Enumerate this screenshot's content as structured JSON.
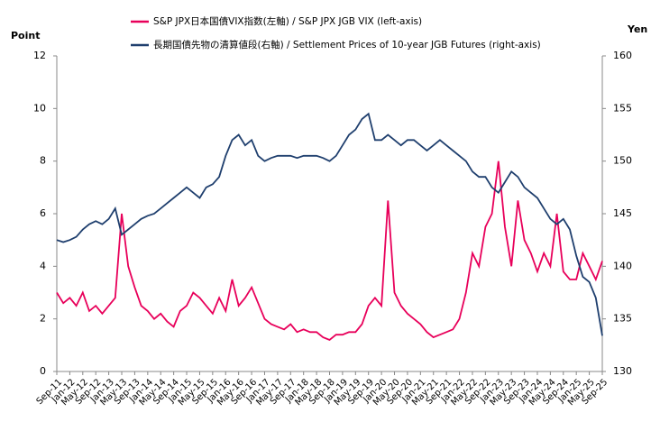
{
  "chart_data": {
    "type": "line",
    "y_label": "Point",
    "y2_label": "Yen",
    "ylim": [
      0,
      12
    ],
    "yticks": [
      0,
      2,
      4,
      6,
      8,
      10,
      12
    ],
    "y2lim": [
      130,
      160
    ],
    "y2ticks": [
      130,
      135,
      140,
      145,
      150,
      155,
      160
    ],
    "categories": [
      "Sep-11",
      null,
      "Jan-12",
      null,
      "May-12",
      null,
      "Sep-12",
      null,
      "Jan-13",
      null,
      "May-13",
      null,
      "Sep-13",
      null,
      "Jan-14",
      null,
      "May-14",
      null,
      "Sep-14",
      null,
      "Jan-15",
      null,
      "May-15",
      null,
      "Sep-15",
      null,
      "Jan-16",
      null,
      "May-16",
      null,
      "Sep-16",
      null,
      "Jan-17",
      null,
      "May-17",
      null,
      "Sep-17",
      null,
      "Jan-18",
      null,
      "May-18",
      null,
      "Sep-18",
      null,
      "Jan-19",
      null,
      "May-19",
      null,
      "Sep-19",
      null,
      "Jan-20",
      null,
      "May-20",
      null,
      "Sep-20",
      null,
      "Jan-21",
      null,
      "May-21",
      null,
      "Sep-21",
      null,
      "Jan-22",
      null,
      "May-22",
      null,
      "Sep-22",
      null,
      "Jan-23",
      null,
      "May-23",
      null,
      "Sep-23",
      null,
      "Jan-24",
      null,
      "May-24",
      null,
      "Sep-24",
      null,
      "Jan-25",
      null,
      "May-25",
      null,
      "Sep-25"
    ],
    "series": [
      {
        "name": "S&P JPX日本国債VIX指数(左軸) / S&P JPX JGB VIX (left-axis)",
        "color": "#e8005a",
        "axis": "y",
        "values": [
          3.0,
          2.6,
          2.8,
          2.5,
          3.0,
          2.3,
          2.5,
          2.2,
          2.5,
          2.8,
          6.0,
          4.0,
          3.2,
          2.5,
          2.3,
          2.0,
          2.2,
          1.9,
          1.7,
          2.3,
          2.5,
          3.0,
          2.8,
          2.5,
          2.2,
          2.8,
          2.3,
          3.5,
          2.5,
          2.8,
          3.2,
          2.6,
          2.0,
          1.8,
          1.7,
          1.6,
          1.8,
          1.5,
          1.6,
          1.5,
          1.5,
          1.3,
          1.2,
          1.4,
          1.4,
          1.5,
          1.5,
          1.8,
          2.5,
          2.8,
          2.5,
          6.5,
          3.0,
          2.5,
          2.2,
          2.0,
          1.8,
          1.5,
          1.3,
          1.4,
          1.5,
          1.6,
          2.0,
          3.0,
          4.5,
          4.0,
          5.5,
          6.0,
          8.0,
          5.5,
          4.0,
          6.5,
          5.0,
          4.5,
          3.8,
          4.5,
          4.0,
          6.0,
          3.8,
          3.5,
          3.5,
          4.5,
          4.0,
          3.5,
          4.2
        ]
      },
      {
        "name": "長期国債先物の清算値段(右軸) / Settlement Prices of 10-year JGB Futures (right-axis)",
        "color": "#1f3f6e",
        "axis": "y2",
        "values": [
          142.5,
          142.3,
          142.5,
          142.8,
          143.5,
          144.0,
          144.3,
          144.0,
          144.5,
          145.5,
          143.0,
          143.5,
          144.0,
          144.5,
          144.8,
          145.0,
          145.5,
          146.0,
          146.5,
          147.0,
          147.5,
          147.0,
          146.5,
          147.5,
          147.8,
          148.5,
          150.5,
          152.0,
          152.5,
          151.5,
          152.0,
          150.5,
          150.0,
          150.3,
          150.5,
          150.5,
          150.5,
          150.3,
          150.5,
          150.5,
          150.5,
          150.3,
          150.0,
          150.5,
          151.5,
          152.5,
          153.0,
          154.0,
          154.5,
          152.0,
          152.0,
          152.5,
          152.0,
          151.5,
          152.0,
          152.0,
          151.5,
          151.0,
          151.5,
          152.0,
          151.5,
          151.0,
          150.5,
          150.0,
          149.0,
          148.5,
          148.5,
          147.5,
          147.0,
          148.0,
          149.0,
          148.5,
          147.5,
          147.0,
          146.5,
          145.5,
          144.5,
          144.0,
          144.5,
          143.5,
          141.0,
          139.0,
          138.5,
          137.0,
          133.4
        ]
      }
    ]
  }
}
